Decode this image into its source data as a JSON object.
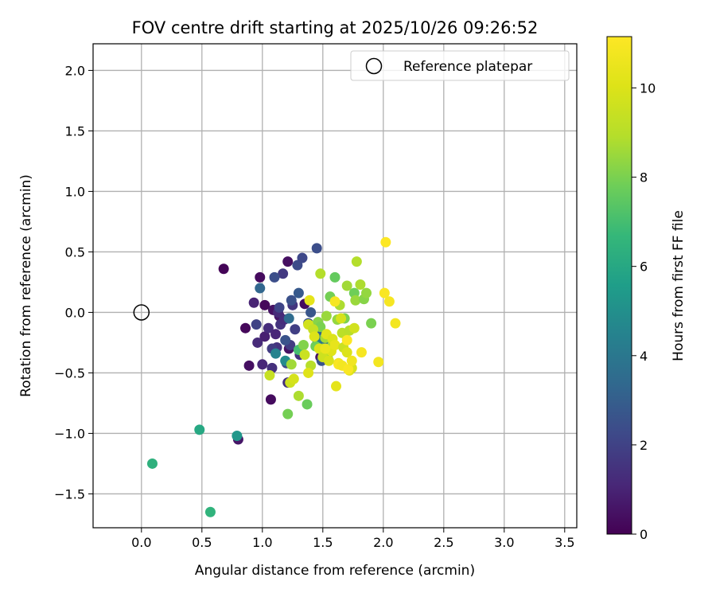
{
  "chart_data": {
    "type": "scatter",
    "title": "FOV centre drift starting at 2025/10/26 09:26:52",
    "xlabel": "Angular distance from reference (arcmin)",
    "ylabel": "Rotation from reference (arcmin)",
    "xlim": [
      -0.4,
      3.6
    ],
    "ylim": [
      -1.78,
      2.22
    ],
    "xticks": [
      0.0,
      0.5,
      1.0,
      1.5,
      2.0,
      2.5,
      3.0,
      3.5
    ],
    "xtick_labels": [
      "0.0",
      "0.5",
      "1.0",
      "1.5",
      "2.0",
      "2.5",
      "3.0",
      "3.5"
    ],
    "yticks": [
      -1.5,
      -1.0,
      -0.5,
      0.0,
      0.5,
      1.0,
      1.5,
      2.0
    ],
    "ytick_labels": [
      "−1.5",
      "−1.0",
      "−0.5",
      "0.0",
      "0.5",
      "1.0",
      "1.5",
      "2.0"
    ],
    "grid": true,
    "legend": {
      "placement": "top-right",
      "entries": [
        "Reference platepar"
      ]
    },
    "reference_point": {
      "x": 0.0,
      "y": 0.0
    },
    "colorbar": {
      "label": "Hours from first FF file",
      "min": 0,
      "max": 11.15,
      "ticks": [
        0,
        2,
        4,
        6,
        8,
        10
      ],
      "tick_labels": [
        "0",
        "2",
        "4",
        "6",
        "8",
        "10"
      ],
      "colormap": "viridis"
    },
    "series": [
      {
        "values": [
          {
            "x": 0.68,
            "y": 0.36,
            "c": 0.1
          },
          {
            "x": 0.86,
            "y": -0.13,
            "c": 0.2
          },
          {
            "x": 0.89,
            "y": -0.44,
            "c": 0.4
          },
          {
            "x": 0.98,
            "y": 0.29,
            "c": 0.3
          },
          {
            "x": 1.02,
            "y": 0.06,
            "c": 0.2
          },
          {
            "x": 1.07,
            "y": -0.72,
            "c": 0.3
          },
          {
            "x": 1.09,
            "y": 0.02,
            "c": 0.5
          },
          {
            "x": 1.14,
            "y": -0.03,
            "c": 0.6
          },
          {
            "x": 1.21,
            "y": 0.42,
            "c": 0.4
          },
          {
            "x": 1.22,
            "y": -0.3,
            "c": 0.5
          },
          {
            "x": 1.35,
            "y": 0.07,
            "c": 0.3
          },
          {
            "x": 1.48,
            "y": -0.37,
            "c": 0.5
          },
          {
            "x": 0.8,
            "y": -1.05,
            "c": 0.6
          },
          {
            "x": 0.93,
            "y": 0.08,
            "c": 1.0
          },
          {
            "x": 0.96,
            "y": -0.25,
            "c": 1.2
          },
          {
            "x": 1.0,
            "y": -0.43,
            "c": 1.1
          },
          {
            "x": 1.02,
            "y": -0.2,
            "c": 0.9
          },
          {
            "x": 1.05,
            "y": -0.13,
            "c": 1.3
          },
          {
            "x": 1.08,
            "y": -0.46,
            "c": 1.4
          },
          {
            "x": 1.11,
            "y": -0.18,
            "c": 1.1
          },
          {
            "x": 1.12,
            "y": -0.29,
            "c": 1.5
          },
          {
            "x": 1.13,
            "y": 0.0,
            "c": 1.2
          },
          {
            "x": 1.15,
            "y": -0.1,
            "c": 1.5
          },
          {
            "x": 1.17,
            "y": 0.32,
            "c": 1.7
          },
          {
            "x": 1.18,
            "y": -0.06,
            "c": 1.3
          },
          {
            "x": 1.21,
            "y": -0.58,
            "c": 1.4
          },
          {
            "x": 1.23,
            "y": -0.27,
            "c": 1.8
          },
          {
            "x": 1.25,
            "y": 0.06,
            "c": 1.6
          },
          {
            "x": 1.27,
            "y": -0.14,
            "c": 1.9
          },
          {
            "x": 1.31,
            "y": -0.35,
            "c": 1.5
          },
          {
            "x": 1.08,
            "y": -0.3,
            "c": 1.8
          },
          {
            "x": 0.95,
            "y": -0.1,
            "c": 2.0
          },
          {
            "x": 1.1,
            "y": 0.29,
            "c": 2.4
          },
          {
            "x": 1.14,
            "y": 0.04,
            "c": 2.1
          },
          {
            "x": 1.19,
            "y": -0.23,
            "c": 2.6
          },
          {
            "x": 1.2,
            "y": -0.42,
            "c": 2.2
          },
          {
            "x": 1.24,
            "y": 0.1,
            "c": 2.5
          },
          {
            "x": 1.29,
            "y": 0.39,
            "c": 2.3
          },
          {
            "x": 1.3,
            "y": 0.16,
            "c": 2.8
          },
          {
            "x": 1.33,
            "y": 0.45,
            "c": 2.2
          },
          {
            "x": 1.38,
            "y": -0.09,
            "c": 2.5
          },
          {
            "x": 1.4,
            "y": 0.0,
            "c": 2.7
          },
          {
            "x": 1.45,
            "y": 0.53,
            "c": 2.4
          },
          {
            "x": 1.46,
            "y": -0.15,
            "c": 3.1
          },
          {
            "x": 1.49,
            "y": -0.4,
            "c": 2.6
          },
          {
            "x": 0.98,
            "y": 0.2,
            "c": 3.3
          },
          {
            "x": 1.22,
            "y": -0.05,
            "c": 3.5
          },
          {
            "x": 1.52,
            "y": -0.25,
            "c": 3.7
          },
          {
            "x": 1.55,
            "y": -0.33,
            "c": 3.4
          },
          {
            "x": 1.11,
            "y": -0.34,
            "c": 4.5
          },
          {
            "x": 1.19,
            "y": -0.4,
            "c": 4.8
          },
          {
            "x": 1.45,
            "y": -0.22,
            "c": 4.2
          },
          {
            "x": 0.79,
            "y": -1.02,
            "c": 5.3
          },
          {
            "x": 0.48,
            "y": -0.97,
            "c": 6.0
          },
          {
            "x": 0.09,
            "y": -1.25,
            "c": 6.4
          },
          {
            "x": 0.57,
            "y": -1.65,
            "c": 6.5
          },
          {
            "x": 1.3,
            "y": -0.31,
            "c": 7.0
          },
          {
            "x": 1.21,
            "y": -0.84,
            "c": 7.9
          },
          {
            "x": 1.24,
            "y": -0.43,
            "c": 8.6
          },
          {
            "x": 1.3,
            "y": -0.69,
            "c": 8.8
          },
          {
            "x": 1.34,
            "y": -0.27,
            "c": 8.1
          },
          {
            "x": 1.37,
            "y": -0.76,
            "c": 7.7
          },
          {
            "x": 1.4,
            "y": -0.44,
            "c": 9.0
          },
          {
            "x": 1.42,
            "y": -0.11,
            "c": 8.5
          },
          {
            "x": 1.44,
            "y": -0.28,
            "c": 7.8
          },
          {
            "x": 1.46,
            "y": -0.08,
            "c": 8.2
          },
          {
            "x": 1.48,
            "y": 0.32,
            "c": 8.9
          },
          {
            "x": 1.5,
            "y": -0.3,
            "c": 8.0
          },
          {
            "x": 1.52,
            "y": -0.21,
            "c": 8.7
          },
          {
            "x": 1.54,
            "y": -0.37,
            "c": 8.3
          },
          {
            "x": 1.56,
            "y": 0.13,
            "c": 7.9
          },
          {
            "x": 1.58,
            "y": -0.27,
            "c": 8.6
          },
          {
            "x": 1.6,
            "y": 0.29,
            "c": 7.6
          },
          {
            "x": 1.62,
            "y": -0.06,
            "c": 8.4
          },
          {
            "x": 1.64,
            "y": 0.06,
            "c": 8.8
          },
          {
            "x": 1.66,
            "y": -0.17,
            "c": 9.1
          },
          {
            "x": 1.68,
            "y": -0.05,
            "c": 8.0
          },
          {
            "x": 1.7,
            "y": 0.22,
            "c": 8.6
          },
          {
            "x": 1.72,
            "y": -0.15,
            "c": 9.0
          },
          {
            "x": 1.76,
            "y": 0.16,
            "c": 7.8
          },
          {
            "x": 1.77,
            "y": 0.1,
            "c": 8.5
          },
          {
            "x": 1.78,
            "y": 0.42,
            "c": 8.9
          },
          {
            "x": 1.81,
            "y": 0.23,
            "c": 8.8
          },
          {
            "x": 1.84,
            "y": 0.11,
            "c": 8.2
          },
          {
            "x": 1.86,
            "y": 0.16,
            "c": 8.4
          },
          {
            "x": 1.9,
            "y": -0.09,
            "c": 8.0
          },
          {
            "x": 1.48,
            "y": -0.12,
            "c": 8.0
          },
          {
            "x": 1.53,
            "y": -0.03,
            "c": 8.5
          },
          {
            "x": 1.06,
            "y": -0.52,
            "c": 9.4
          },
          {
            "x": 1.23,
            "y": -0.58,
            "c": 9.6
          },
          {
            "x": 1.26,
            "y": -0.55,
            "c": 9.8
          },
          {
            "x": 1.35,
            "y": -0.35,
            "c": 9.5
          },
          {
            "x": 1.38,
            "y": -0.5,
            "c": 10.1
          },
          {
            "x": 1.38,
            "y": -0.1,
            "c": 9.7
          },
          {
            "x": 1.39,
            "y": 0.1,
            "c": 10.3
          },
          {
            "x": 1.42,
            "y": -0.14,
            "c": 9.4
          },
          {
            "x": 1.47,
            "y": -0.3,
            "c": 10.0
          },
          {
            "x": 1.5,
            "y": -0.37,
            "c": 9.6
          },
          {
            "x": 1.53,
            "y": -0.18,
            "c": 10.2
          },
          {
            "x": 1.55,
            "y": -0.4,
            "c": 9.9
          },
          {
            "x": 1.57,
            "y": -0.32,
            "c": 10.1
          },
          {
            "x": 1.58,
            "y": -0.22,
            "c": 10.0
          },
          {
            "x": 1.6,
            "y": -0.27,
            "c": 10.4
          },
          {
            "x": 1.61,
            "y": -0.61,
            "c": 10.3
          },
          {
            "x": 1.63,
            "y": -0.42,
            "c": 10.6
          },
          {
            "x": 1.65,
            "y": -0.05,
            "c": 9.8
          },
          {
            "x": 1.67,
            "y": -0.29,
            "c": 9.5
          },
          {
            "x": 1.7,
            "y": -0.33,
            "c": 10.0
          },
          {
            "x": 1.72,
            "y": -0.48,
            "c": 10.2
          },
          {
            "x": 1.74,
            "y": -0.46,
            "c": 9.9
          },
          {
            "x": 1.76,
            "y": -0.13,
            "c": 9.7
          },
          {
            "x": 1.52,
            "y": -0.3,
            "c": 10.5
          },
          {
            "x": 1.43,
            "y": -0.2,
            "c": 10.0
          },
          {
            "x": 1.6,
            "y": 0.09,
            "c": 10.9
          },
          {
            "x": 1.63,
            "y": -0.43,
            "c": 11.0
          },
          {
            "x": 1.66,
            "y": -0.44,
            "c": 10.8
          },
          {
            "x": 1.7,
            "y": -0.23,
            "c": 11.1
          },
          {
            "x": 1.71,
            "y": -0.47,
            "c": 11.0
          },
          {
            "x": 1.74,
            "y": -0.4,
            "c": 10.7
          },
          {
            "x": 1.82,
            "y": -0.33,
            "c": 10.9
          },
          {
            "x": 1.96,
            "y": -0.41,
            "c": 10.8
          },
          {
            "x": 2.01,
            "y": 0.16,
            "c": 11.0
          },
          {
            "x": 2.02,
            "y": 0.58,
            "c": 11.1
          },
          {
            "x": 2.05,
            "y": 0.09,
            "c": 10.9
          },
          {
            "x": 2.1,
            "y": -0.09,
            "c": 10.8
          }
        ]
      }
    ]
  }
}
